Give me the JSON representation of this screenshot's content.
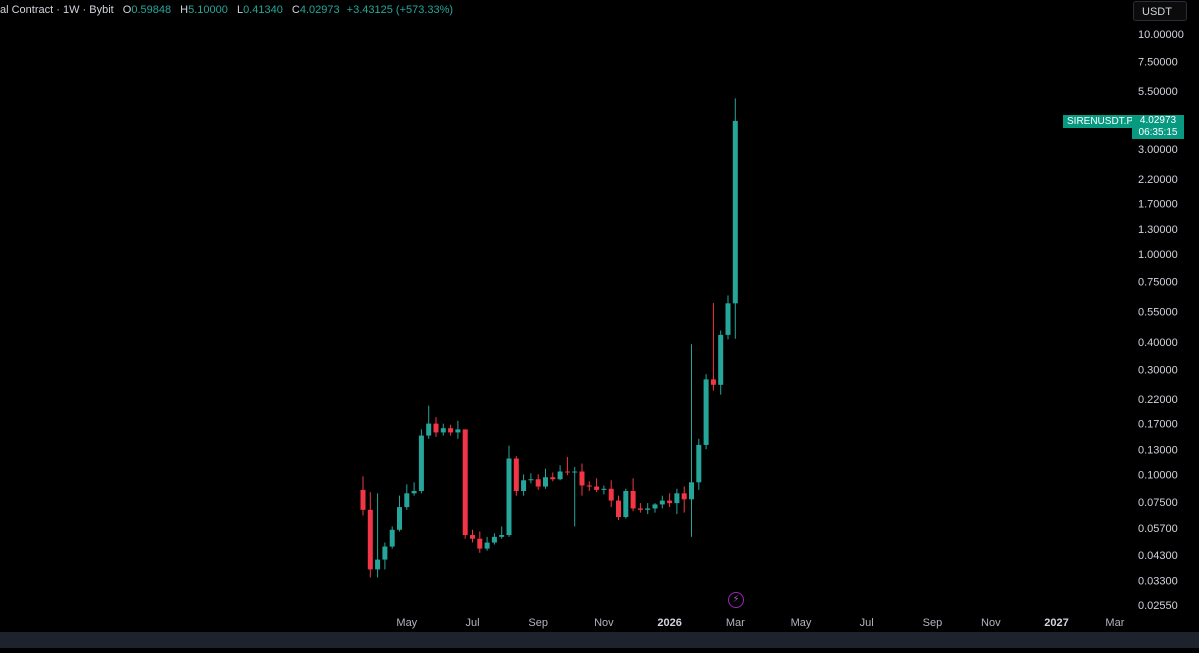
{
  "legend": {
    "title": "al Contract · 1W · Bybit",
    "o_label": "O",
    "o_value": "0.59848",
    "h_label": "H",
    "h_value": "5.10000",
    "l_label": "L",
    "l_value": "0.41340",
    "c_label": "C",
    "c_value": "4.02973",
    "change": "+3.43125 (+573.33%)"
  },
  "currency_button": "USDT",
  "price_tag": {
    "symbol": "SIRENUSDT.P",
    "price": "4.02973",
    "countdown": "06:35:15"
  },
  "colors": {
    "up": "#26a69a",
    "down": "#f23645",
    "background": "#000000",
    "marker": "#9c27b0"
  },
  "marker_icon": "lightning-icon",
  "chart_data": {
    "type": "candlestick",
    "y_scale": "log",
    "ylim": [
      0.023,
      12.0
    ],
    "y_ticks": [
      "10.00000",
      "7.50000",
      "5.50000",
      "4.00000",
      "3.00000",
      "2.20000",
      "1.70000",
      "1.30000",
      "1.00000",
      "0.75000",
      "0.55000",
      "0.40000",
      "0.30000",
      "0.22000",
      "0.17000",
      "0.13000",
      "0.10000",
      "0.07500",
      "0.05700",
      "0.04300",
      "0.03300",
      "0.02550"
    ],
    "x_ticks": [
      {
        "label": "May",
        "year": false,
        "week": 6
      },
      {
        "label": "Jul",
        "year": false,
        "week": 15
      },
      {
        "label": "Sep",
        "year": false,
        "week": 24
      },
      {
        "label": "Nov",
        "year": false,
        "week": 33
      },
      {
        "label": "2026",
        "year": true,
        "week": 42
      },
      {
        "label": "Mar",
        "year": false,
        "week": 51
      },
      {
        "label": "May",
        "year": false,
        "week": 60
      },
      {
        "label": "Jul",
        "year": false,
        "week": 69
      },
      {
        "label": "Sep",
        "year": false,
        "week": 78
      },
      {
        "label": "Nov",
        "year": false,
        "week": 86
      },
      {
        "label": "2027",
        "year": true,
        "week": 95
      },
      {
        "label": "Mar",
        "year": false,
        "week": 103
      }
    ],
    "candles": [
      {
        "o": 0.085,
        "h": 0.098,
        "l": 0.065,
        "c": 0.069
      },
      {
        "o": 0.069,
        "h": 0.083,
        "l": 0.034,
        "c": 0.037
      },
      {
        "o": 0.037,
        "h": 0.082,
        "l": 0.034,
        "c": 0.041
      },
      {
        "o": 0.041,
        "h": 0.049,
        "l": 0.037,
        "c": 0.047
      },
      {
        "o": 0.047,
        "h": 0.058,
        "l": 0.046,
        "c": 0.056
      },
      {
        "o": 0.056,
        "h": 0.08,
        "l": 0.055,
        "c": 0.071
      },
      {
        "o": 0.071,
        "h": 0.09,
        "l": 0.069,
        "c": 0.082
      },
      {
        "o": 0.082,
        "h": 0.092,
        "l": 0.08,
        "c": 0.084
      },
      {
        "o": 0.084,
        "h": 0.16,
        "l": 0.082,
        "c": 0.15
      },
      {
        "o": 0.15,
        "h": 0.205,
        "l": 0.145,
        "c": 0.17
      },
      {
        "o": 0.17,
        "h": 0.182,
        "l": 0.148,
        "c": 0.155
      },
      {
        "o": 0.155,
        "h": 0.17,
        "l": 0.15,
        "c": 0.162
      },
      {
        "o": 0.162,
        "h": 0.168,
        "l": 0.15,
        "c": 0.155
      },
      {
        "o": 0.155,
        "h": 0.175,
        "l": 0.145,
        "c": 0.16
      },
      {
        "o": 0.16,
        "h": 0.16,
        "l": 0.051,
        "c": 0.053
      },
      {
        "o": 0.053,
        "h": 0.056,
        "l": 0.049,
        "c": 0.051
      },
      {
        "o": 0.051,
        "h": 0.055,
        "l": 0.044,
        "c": 0.046
      },
      {
        "o": 0.046,
        "h": 0.052,
        "l": 0.045,
        "c": 0.049
      },
      {
        "o": 0.049,
        "h": 0.054,
        "l": 0.048,
        "c": 0.052
      },
      {
        "o": 0.052,
        "h": 0.058,
        "l": 0.051,
        "c": 0.053
      },
      {
        "o": 0.053,
        "h": 0.135,
        "l": 0.052,
        "c": 0.118
      },
      {
        "o": 0.118,
        "h": 0.121,
        "l": 0.08,
        "c": 0.084
      },
      {
        "o": 0.084,
        "h": 0.1,
        "l": 0.08,
        "c": 0.094
      },
      {
        "o": 0.094,
        "h": 0.101,
        "l": 0.091,
        "c": 0.095
      },
      {
        "o": 0.095,
        "h": 0.1,
        "l": 0.085,
        "c": 0.088
      },
      {
        "o": 0.088,
        "h": 0.106,
        "l": 0.086,
        "c": 0.097
      },
      {
        "o": 0.097,
        "h": 0.102,
        "l": 0.093,
        "c": 0.095
      },
      {
        "o": 0.095,
        "h": 0.11,
        "l": 0.094,
        "c": 0.103
      },
      {
        "o": 0.103,
        "h": 0.12,
        "l": 0.099,
        "c": 0.102
      },
      {
        "o": 0.102,
        "h": 0.108,
        "l": 0.058,
        "c": 0.103
      },
      {
        "o": 0.103,
        "h": 0.112,
        "l": 0.08,
        "c": 0.089
      },
      {
        "o": 0.089,
        "h": 0.093,
        "l": 0.084,
        "c": 0.088
      },
      {
        "o": 0.088,
        "h": 0.096,
        "l": 0.083,
        "c": 0.085
      },
      {
        "o": 0.085,
        "h": 0.089,
        "l": 0.081,
        "c": 0.086
      },
      {
        "o": 0.086,
        "h": 0.094,
        "l": 0.071,
        "c": 0.076
      },
      {
        "o": 0.076,
        "h": 0.08,
        "l": 0.062,
        "c": 0.064
      },
      {
        "o": 0.064,
        "h": 0.086,
        "l": 0.063,
        "c": 0.084
      },
      {
        "o": 0.084,
        "h": 0.096,
        "l": 0.068,
        "c": 0.07
      },
      {
        "o": 0.07,
        "h": 0.074,
        "l": 0.067,
        "c": 0.069
      },
      {
        "o": 0.069,
        "h": 0.074,
        "l": 0.066,
        "c": 0.07
      },
      {
        "o": 0.07,
        "h": 0.074,
        "l": 0.067,
        "c": 0.073
      },
      {
        "o": 0.073,
        "h": 0.08,
        "l": 0.07,
        "c": 0.076
      },
      {
        "o": 0.076,
        "h": 0.082,
        "l": 0.071,
        "c": 0.074
      },
      {
        "o": 0.074,
        "h": 0.086,
        "l": 0.066,
        "c": 0.082
      },
      {
        "o": 0.082,
        "h": 0.088,
        "l": 0.067,
        "c": 0.077
      },
      {
        "o": 0.077,
        "h": 0.39,
        "l": 0.052,
        "c": 0.092
      },
      {
        "o": 0.092,
        "h": 0.145,
        "l": 0.085,
        "c": 0.136
      },
      {
        "o": 0.136,
        "h": 0.285,
        "l": 0.13,
        "c": 0.27
      },
      {
        "o": 0.27,
        "h": 0.6,
        "l": 0.24,
        "c": 0.255
      },
      {
        "o": 0.255,
        "h": 0.45,
        "l": 0.23,
        "c": 0.43
      },
      {
        "o": 0.43,
        "h": 0.65,
        "l": 0.41,
        "c": 0.598
      },
      {
        "o": 0.598,
        "h": 5.1,
        "l": 0.413,
        "c": 4.03
      }
    ]
  }
}
